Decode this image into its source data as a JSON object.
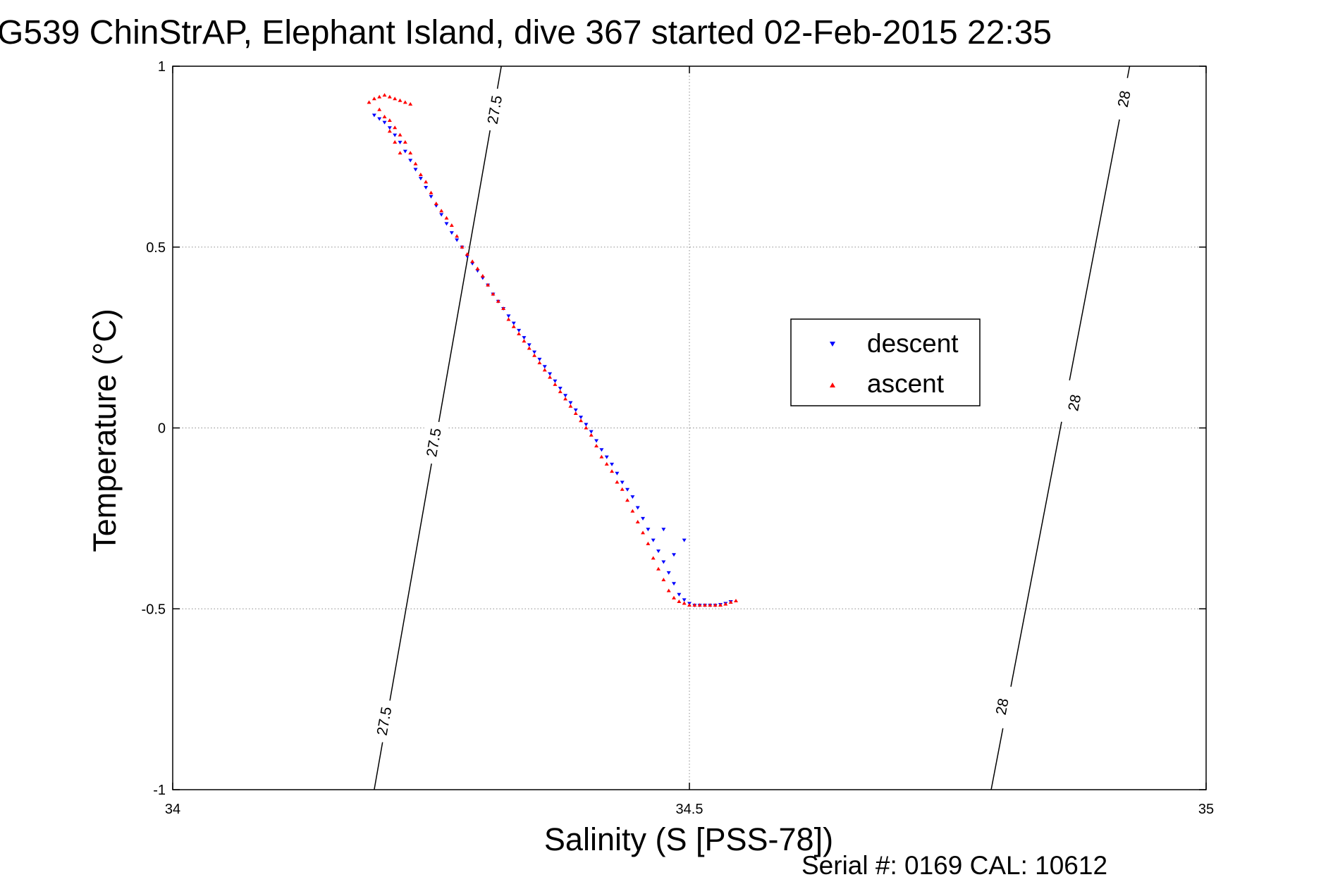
{
  "chart_data": {
    "type": "scatter",
    "title": "G539 ChinStrAP, Elephant Island, dive 367 started 02-Feb-2015 22:35",
    "xlabel": "Salinity (S [PSS-78])",
    "ylabel": "Temperature (°C)",
    "xlim": [
      34,
      35
    ],
    "ylim": [
      -1,
      1
    ],
    "xticks": [
      34,
      34.5,
      35
    ],
    "yticks": [
      -1,
      -0.5,
      0,
      0.5,
      1
    ],
    "xtick_labels": [
      "34",
      "34.5",
      "35"
    ],
    "ytick_labels": [
      "-1",
      "-0.5",
      "0",
      "0.5",
      "1"
    ],
    "grid": true,
    "legend_position": "center-right",
    "series": [
      {
        "name": "descent",
        "color": "#0000ff",
        "marker": "triangle-down",
        "x": [
          34.195,
          34.2,
          34.205,
          34.21,
          34.215,
          34.22,
          34.225,
          34.23,
          34.235,
          34.24,
          34.245,
          34.25,
          34.255,
          34.26,
          34.265,
          34.27,
          34.275,
          34.28,
          34.285,
          34.29,
          34.295,
          34.3,
          34.305,
          34.31,
          34.315,
          34.32,
          34.325,
          34.33,
          34.335,
          34.34,
          34.345,
          34.35,
          34.355,
          34.36,
          34.365,
          34.37,
          34.375,
          34.38,
          34.385,
          34.39,
          34.395,
          34.4,
          34.405,
          34.41,
          34.415,
          34.42,
          34.425,
          34.43,
          34.435,
          34.44,
          34.445,
          34.45,
          34.455,
          34.46,
          34.465,
          34.47,
          34.475,
          34.48,
          34.485,
          34.49,
          34.495,
          34.5,
          34.505,
          34.51,
          34.515,
          34.52,
          34.525,
          34.53,
          34.535,
          34.54,
          34.475,
          34.485,
          34.495
        ],
        "y": [
          0.865,
          0.855,
          0.845,
          0.83,
          0.81,
          0.79,
          0.765,
          0.74,
          0.715,
          0.69,
          0.665,
          0.64,
          0.615,
          0.59,
          0.565,
          0.54,
          0.52,
          0.5,
          0.475,
          0.455,
          0.435,
          0.415,
          0.395,
          0.37,
          0.35,
          0.33,
          0.31,
          0.29,
          0.27,
          0.25,
          0.23,
          0.21,
          0.19,
          0.17,
          0.15,
          0.13,
          0.11,
          0.09,
          0.07,
          0.05,
          0.03,
          0.01,
          -0.01,
          -0.035,
          -0.06,
          -0.08,
          -0.1,
          -0.125,
          -0.15,
          -0.17,
          -0.19,
          -0.22,
          -0.25,
          -0.28,
          -0.31,
          -0.34,
          -0.37,
          -0.4,
          -0.43,
          -0.46,
          -0.475,
          -0.485,
          -0.49,
          -0.49,
          -0.49,
          -0.49,
          -0.49,
          -0.488,
          -0.485,
          -0.48,
          -0.28,
          -0.35,
          -0.31
        ]
      },
      {
        "name": "ascent",
        "color": "#ff0000",
        "marker": "triangle-up",
        "x": [
          34.19,
          34.195,
          34.2,
          34.205,
          34.21,
          34.215,
          34.22,
          34.225,
          34.23,
          34.2,
          34.205,
          34.21,
          34.215,
          34.22,
          34.225,
          34.23,
          34.235,
          34.24,
          34.245,
          34.25,
          34.255,
          34.26,
          34.265,
          34.27,
          34.275,
          34.28,
          34.285,
          34.29,
          34.295,
          34.3,
          34.305,
          34.31,
          34.315,
          34.32,
          34.325,
          34.33,
          34.335,
          34.34,
          34.345,
          34.35,
          34.355,
          34.36,
          34.365,
          34.37,
          34.375,
          34.38,
          34.385,
          34.39,
          34.395,
          34.4,
          34.405,
          34.41,
          34.415,
          34.42,
          34.425,
          34.43,
          34.435,
          34.44,
          34.445,
          34.45,
          34.455,
          34.46,
          34.465,
          34.47,
          34.475,
          34.48,
          34.485,
          34.49,
          34.495,
          34.5,
          34.505,
          34.51,
          34.515,
          34.52,
          34.525,
          34.53,
          34.535,
          34.54,
          34.545,
          34.21,
          34.215,
          34.22
        ],
        "y": [
          0.9,
          0.91,
          0.915,
          0.92,
          0.915,
          0.91,
          0.905,
          0.9,
          0.895,
          0.88,
          0.86,
          0.85,
          0.83,
          0.81,
          0.79,
          0.76,
          0.73,
          0.7,
          0.68,
          0.65,
          0.62,
          0.6,
          0.58,
          0.56,
          0.53,
          0.5,
          0.48,
          0.46,
          0.44,
          0.42,
          0.395,
          0.37,
          0.35,
          0.33,
          0.3,
          0.28,
          0.26,
          0.24,
          0.22,
          0.2,
          0.18,
          0.16,
          0.14,
          0.12,
          0.1,
          0.08,
          0.06,
          0.04,
          0.02,
          0.0,
          -0.02,
          -0.05,
          -0.08,
          -0.1,
          -0.12,
          -0.15,
          -0.17,
          -0.2,
          -0.23,
          -0.26,
          -0.29,
          -0.32,
          -0.36,
          -0.39,
          -0.42,
          -0.45,
          -0.47,
          -0.48,
          -0.485,
          -0.49,
          -0.49,
          -0.49,
          -0.49,
          -0.49,
          -0.49,
          -0.49,
          -0.487,
          -0.482,
          -0.478,
          0.82,
          0.79,
          0.76
        ]
      }
    ],
    "contours": [
      {
        "level": "27.5",
        "x": [
          34.195,
          34.318
        ],
        "y": [
          -1,
          1
        ],
        "labels": [
          {
            "text": "27.5",
            "x": 34.204,
            "y": -0.81
          },
          {
            "text": "27.5",
            "x": 34.252,
            "y": -0.04
          },
          {
            "text": "27.5",
            "x": 34.311,
            "y": 0.88
          }
        ]
      },
      {
        "level": "28",
        "x": [
          34.792,
          34.926
        ],
        "y": [
          -1,
          1
        ],
        "labels": [
          {
            "text": "28",
            "x": 34.802,
            "y": -0.77
          },
          {
            "text": "28",
            "x": 34.872,
            "y": 0.07
          },
          {
            "text": "28",
            "x": 34.92,
            "y": 0.91
          }
        ]
      }
    ]
  },
  "footer": {
    "serial_text": "Serial #: 0169 CAL: 10612"
  }
}
